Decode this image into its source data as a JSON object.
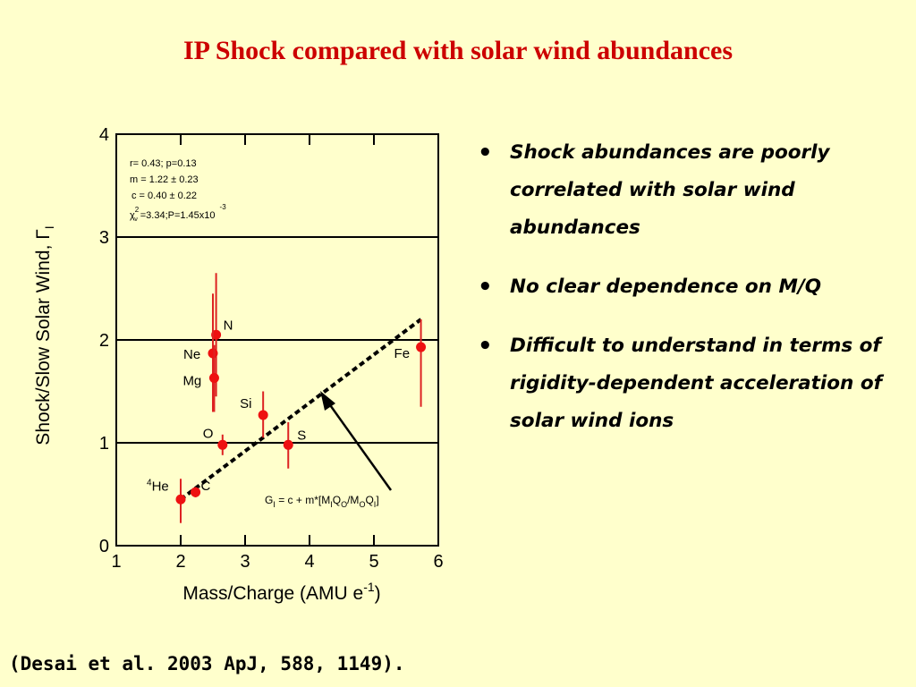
{
  "slide_title": "IP Shock compared with solar wind abundances",
  "bullets": [
    "Shock abundances are poorly correlated with solar wind abundances",
    "No clear dependence on M/Q",
    "Difficult to understand in terms of rigidity-dependent acceleration of solar wind ions"
  ],
  "citation": "(Desai et al. 2003 ApJ, 588, 1149).",
  "chart_data": {
    "type": "scatter",
    "xlabel": "Mass/Charge (AMU e",
    "xlabel_sup": "-1",
    "xlabel_end": ")",
    "ylabel": "Shock/Slow Solar Wind, Γ",
    "ylabel_sub": "I",
    "xlim": [
      1,
      6
    ],
    "ylim": [
      0,
      4
    ],
    "x_ticks": [
      "1",
      "2",
      "3",
      "4",
      "5",
      "6"
    ],
    "y_ticks": [
      "0",
      "1",
      "2",
      "3",
      "4"
    ],
    "hlines": [
      1,
      2,
      3
    ],
    "points": [
      {
        "label": "He",
        "sup": "4",
        "x": 2.0,
        "y": 0.45,
        "ylo": 0.22,
        "yhi": 0.65
      },
      {
        "label": "C",
        "sup": "",
        "x": 2.23,
        "y": 0.52,
        "ylo": 0.47,
        "yhi": 0.57
      },
      {
        "label": "O",
        "sup": "",
        "x": 2.65,
        "y": 0.98,
        "ylo": 0.88,
        "yhi": 1.08
      },
      {
        "label": "N",
        "sup": "",
        "x": 2.55,
        "y": 2.05,
        "ylo": 1.45,
        "yhi": 2.65
      },
      {
        "label": "Ne",
        "sup": "",
        "x": 2.5,
        "y": 1.87,
        "ylo": 1.3,
        "yhi": 2.45
      },
      {
        "label": "Mg",
        "sup": "",
        "x": 2.52,
        "y": 1.63,
        "ylo": 1.3,
        "yhi": 1.95
      },
      {
        "label": "Si",
        "sup": "",
        "x": 3.28,
        "y": 1.27,
        "ylo": 1.05,
        "yhi": 1.5
      },
      {
        "label": "S",
        "sup": "",
        "x": 3.67,
        "y": 0.98,
        "ylo": 0.75,
        "yhi": 1.2
      },
      {
        "label": "Fe",
        "sup": "",
        "x": 5.73,
        "y": 1.93,
        "ylo": 1.35,
        "yhi": 2.2
      }
    ],
    "fit": {
      "x": [
        2.0,
        5.73
      ],
      "y": [
        0.45,
        2.2
      ]
    },
    "stats": [
      "r= 0.43; p=0.13",
      "m = 1.22  ± 0.23",
      "c = 0.40  ± 0.22",
      "=3.34;P=1.45x10"
    ],
    "stats_chi": "χ",
    "stats_chi_sup": "2",
    "stats_chi_sub": "ν",
    "stats_pval_sup": "-3",
    "annotation": "G",
    "annotation_sub": "I",
    "annotation_mid": " = c + m*[M",
    "annotation_mid2": "Q",
    "annotation_sub2": "O",
    "annotation_mid3": "/M",
    "annotation_sub3": "O",
    "annotation_mid4": "Q",
    "annotation_sub4": "I",
    "annotation_end": "]",
    "colors": {
      "point": "#ee1111",
      "errorbar": "#dd2222",
      "line": "#000000"
    }
  }
}
